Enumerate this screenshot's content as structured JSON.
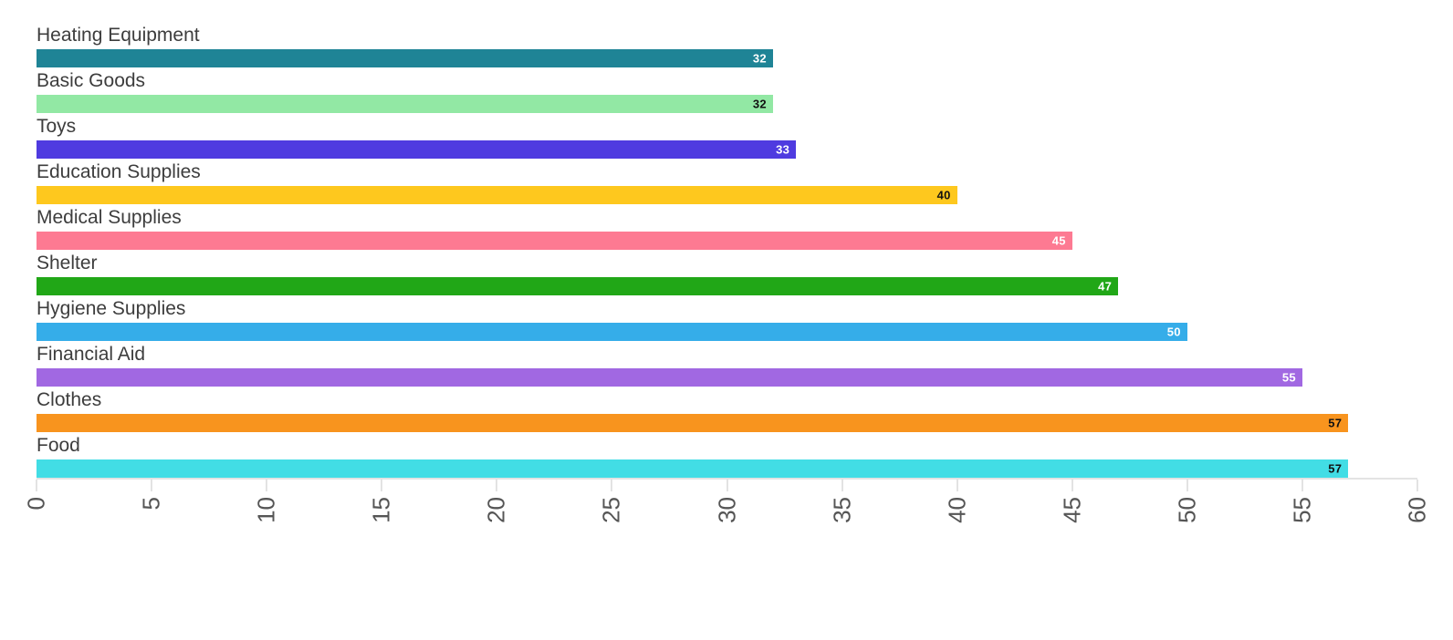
{
  "chart_data": {
    "type": "bar",
    "orientation": "horizontal",
    "title": "",
    "xlabel": "",
    "ylabel": "",
    "xlim": [
      0,
      60
    ],
    "xticks": [
      0,
      5,
      10,
      15,
      20,
      25,
      30,
      35,
      40,
      45,
      50,
      55,
      60
    ],
    "grid": false,
    "legend": false,
    "value_label_position": "inside-end",
    "tick_label_rotation_deg": -90,
    "categories": [
      "Heating Equipment",
      "Basic Goods",
      "Toys",
      "Education Supplies",
      "Medical Supplies",
      "Shelter",
      "Hygiene Supplies",
      "Financial Aid",
      "Clothes",
      "Food"
    ],
    "values": [
      32,
      32,
      33,
      40,
      45,
      47,
      50,
      55,
      57,
      57
    ],
    "bars": [
      {
        "label": "Heating Equipment",
        "value": 32,
        "color": "#1f8496",
        "value_label_color": "#ffffff"
      },
      {
        "label": "Basic Goods",
        "value": 32,
        "color": "#92e8a4",
        "value_label_color": "#111111"
      },
      {
        "label": "Toys",
        "value": 33,
        "color": "#4f3be0",
        "value_label_color": "#ffffff"
      },
      {
        "label": "Education Supplies",
        "value": 40,
        "color": "#fec81e",
        "value_label_color": "#111111"
      },
      {
        "label": "Medical Supplies",
        "value": 45,
        "color": "#fd7a92",
        "value_label_color": "#ffffff"
      },
      {
        "label": "Shelter",
        "value": 47,
        "color": "#21a717",
        "value_label_color": "#ffffff"
      },
      {
        "label": "Hygiene Supplies",
        "value": 50,
        "color": "#35ade9",
        "value_label_color": "#ffffff"
      },
      {
        "label": "Financial Aid",
        "value": 55,
        "color": "#a168e2",
        "value_label_color": "#ffffff"
      },
      {
        "label": "Clothes",
        "value": 57,
        "color": "#f8941e",
        "value_label_color": "#111111"
      },
      {
        "label": "Food",
        "value": 57,
        "color": "#42dde5",
        "value_label_color": "#111111"
      }
    ]
  },
  "colors": {
    "background": "#ffffff",
    "axis_line": "#e3e3e3",
    "tick_label": "#555555",
    "category_label": "#3d3d3d"
  }
}
